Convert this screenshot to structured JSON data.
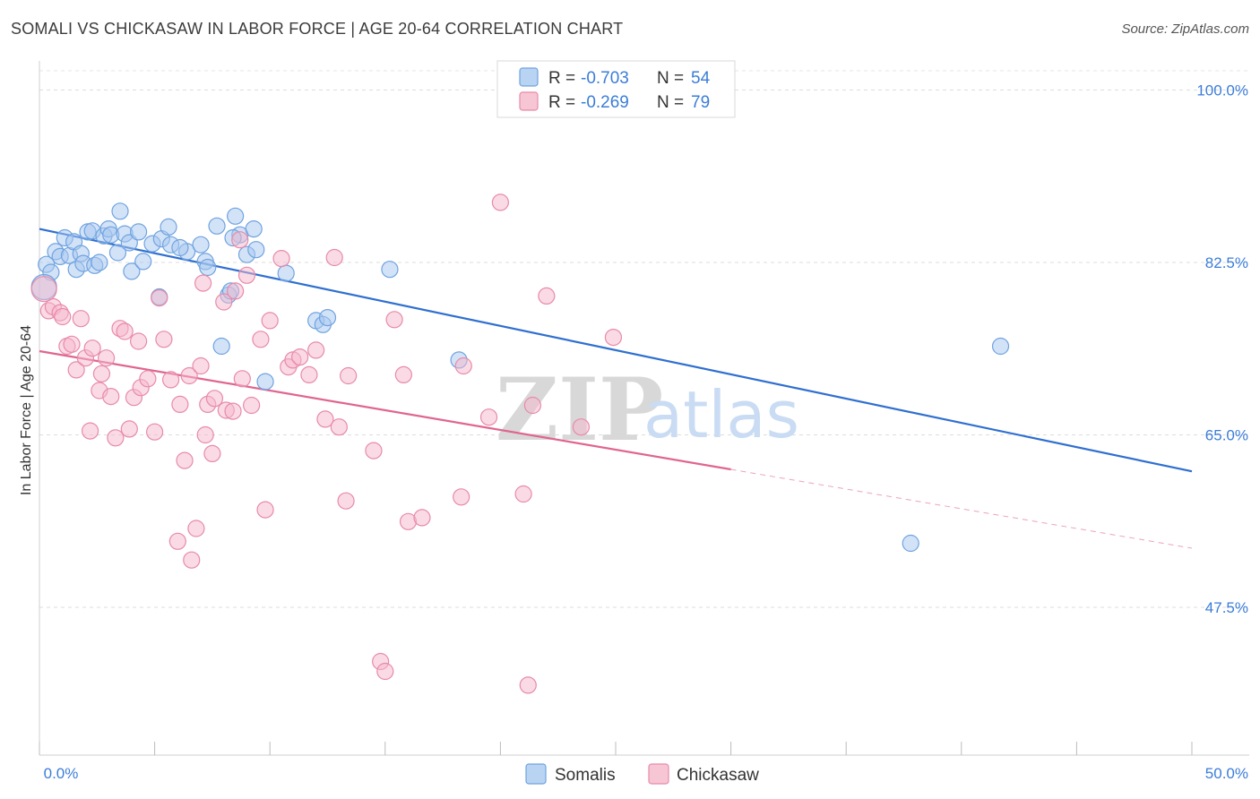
{
  "header": {
    "title": "SOMALI VS CHICKASAW IN LABOR FORCE | AGE 20-64 CORRELATION CHART",
    "source": "Source: ZipAtlas.com"
  },
  "watermark": {
    "zip": "ZIP",
    "atlas": "atlas"
  },
  "legend_box": {
    "rows": [
      {
        "r_label": "R =",
        "r_value": "-0.703",
        "n_label": "N =",
        "n_value": "54",
        "color": "#a8c8f0"
      },
      {
        "r_label": "R =",
        "r_value": "-0.269",
        "n_label": "N =",
        "n_value": "79",
        "color": "#f5b8cb"
      }
    ]
  },
  "bottom_legend": [
    {
      "label": "Somalis",
      "color": "#a8c8f0"
    },
    {
      "label": "Chickasaw",
      "color": "#f5b8cb"
    }
  ],
  "chart_data": {
    "type": "scatter",
    "xlabel": "",
    "ylabel": "In Labor Force | Age 20-64",
    "xlim": [
      0,
      50
    ],
    "ylim": [
      32.5,
      102.5
    ],
    "x_tick_labels": [
      "0.0%",
      "50.0%"
    ],
    "y_ticks": [
      47.5,
      65.0,
      82.5,
      100.0
    ],
    "y_tick_labels": [
      "47.5%",
      "65.0%",
      "82.5%",
      "100.0%"
    ],
    "grid": true,
    "legend_placement": "top-center",
    "series": [
      {
        "name": "Somalis",
        "color": "#6fa3e0",
        "fill": "#a8c8f0",
        "trend": {
          "x": [
            0,
            50
          ],
          "y": [
            85.9,
            61.3
          ],
          "color": "#2f6fd0"
        },
        "points": [
          [
            0.3,
            82.3
          ],
          [
            0.5,
            81.5
          ],
          [
            0.7,
            83.6
          ],
          [
            0.9,
            83.1
          ],
          [
            1.1,
            85.0
          ],
          [
            1.3,
            83.2
          ],
          [
            1.5,
            84.6
          ],
          [
            1.6,
            81.8
          ],
          [
            1.8,
            83.4
          ],
          [
            1.9,
            82.4
          ],
          [
            2.1,
            85.6
          ],
          [
            2.3,
            85.7
          ],
          [
            2.4,
            82.2
          ],
          [
            2.6,
            82.5
          ],
          [
            2.8,
            85.2
          ],
          [
            3.0,
            85.9
          ],
          [
            3.1,
            85.3
          ],
          [
            3.4,
            83.5
          ],
          [
            3.5,
            87.7
          ],
          [
            3.7,
            85.4
          ],
          [
            3.9,
            84.5
          ],
          [
            4.0,
            81.6
          ],
          [
            4.3,
            85.6
          ],
          [
            4.5,
            82.6
          ],
          [
            4.9,
            84.4
          ],
          [
            5.3,
            84.9
          ],
          [
            5.6,
            86.1
          ],
          [
            5.7,
            84.3
          ],
          [
            5.2,
            79.0
          ],
          [
            6.4,
            83.6
          ],
          [
            7.0,
            84.3
          ],
          [
            7.2,
            82.6
          ],
          [
            7.3,
            82.0
          ],
          [
            7.7,
            86.2
          ],
          [
            7.9,
            74.0
          ],
          [
            8.2,
            79.2
          ],
          [
            8.3,
            79.6
          ],
          [
            8.5,
            87.2
          ],
          [
            8.7,
            85.3
          ],
          [
            9.0,
            83.3
          ],
          [
            9.3,
            85.9
          ],
          [
            9.4,
            83.8
          ],
          [
            9.8,
            70.4
          ],
          [
            10.7,
            81.4
          ],
          [
            12.0,
            76.6
          ],
          [
            12.3,
            76.2
          ],
          [
            12.5,
            76.9
          ],
          [
            15.2,
            81.8
          ],
          [
            18.2,
            72.6
          ],
          [
            41.7,
            74.0
          ],
          [
            37.8,
            54.0
          ],
          [
            8.4,
            85.0
          ],
          [
            6.1,
            84.0
          ],
          [
            0.2,
            80.0
          ]
        ]
      },
      {
        "name": "Chickasaw",
        "color": "#e88aa8",
        "fill": "#f5b8cb",
        "trend": {
          "x": [
            0,
            30
          ],
          "y": [
            73.5,
            61.5
          ],
          "color": "#e06590"
        },
        "trend_dashed": {
          "x": [
            30,
            50
          ],
          "y": [
            61.5,
            53.5
          ]
        },
        "points": [
          [
            0.2,
            79.8
          ],
          [
            0.4,
            77.6
          ],
          [
            0.6,
            78.0
          ],
          [
            0.9,
            77.4
          ],
          [
            1.0,
            77.0
          ],
          [
            1.2,
            74.0
          ],
          [
            1.4,
            74.2
          ],
          [
            1.6,
            71.6
          ],
          [
            1.8,
            76.8
          ],
          [
            2.0,
            72.8
          ],
          [
            2.2,
            65.4
          ],
          [
            2.3,
            73.8
          ],
          [
            2.6,
            69.5
          ],
          [
            2.7,
            71.2
          ],
          [
            2.9,
            72.8
          ],
          [
            3.1,
            68.9
          ],
          [
            3.3,
            64.7
          ],
          [
            3.5,
            75.8
          ],
          [
            3.7,
            75.5
          ],
          [
            3.9,
            65.6
          ],
          [
            4.1,
            68.8
          ],
          [
            4.3,
            74.5
          ],
          [
            4.4,
            69.8
          ],
          [
            4.7,
            70.7
          ],
          [
            5.0,
            65.3
          ],
          [
            5.2,
            78.9
          ],
          [
            5.4,
            74.7
          ],
          [
            5.7,
            70.6
          ],
          [
            6.0,
            54.2
          ],
          [
            6.1,
            68.1
          ],
          [
            6.3,
            62.4
          ],
          [
            6.5,
            71.0
          ],
          [
            6.6,
            52.3
          ],
          [
            6.8,
            55.5
          ],
          [
            7.0,
            72.0
          ],
          [
            7.1,
            80.4
          ],
          [
            7.3,
            68.1
          ],
          [
            7.5,
            63.1
          ],
          [
            7.6,
            68.7
          ],
          [
            8.0,
            78.5
          ],
          [
            8.1,
            67.5
          ],
          [
            8.4,
            67.4
          ],
          [
            8.5,
            79.6
          ],
          [
            8.7,
            84.8
          ],
          [
            8.8,
            70.7
          ],
          [
            9.0,
            81.2
          ],
          [
            9.2,
            68.0
          ],
          [
            9.6,
            74.7
          ],
          [
            9.8,
            57.4
          ],
          [
            10.0,
            76.6
          ],
          [
            10.5,
            82.9
          ],
          [
            10.8,
            71.9
          ],
          [
            11.0,
            72.6
          ],
          [
            11.3,
            72.9
          ],
          [
            11.7,
            71.1
          ],
          [
            12.0,
            73.6
          ],
          [
            12.4,
            66.6
          ],
          [
            12.8,
            83.0
          ],
          [
            13.0,
            65.8
          ],
          [
            13.3,
            58.3
          ],
          [
            13.4,
            71.0
          ],
          [
            14.5,
            63.4
          ],
          [
            14.8,
            42.0
          ],
          [
            15.4,
            76.7
          ],
          [
            15.8,
            71.1
          ],
          [
            16.0,
            56.2
          ],
          [
            16.6,
            56.6
          ],
          [
            18.3,
            58.7
          ],
          [
            18.4,
            72.0
          ],
          [
            19.5,
            66.8
          ],
          [
            21.0,
            59.0
          ],
          [
            21.2,
            39.6
          ],
          [
            21.4,
            68.0
          ],
          [
            22.0,
            79.1
          ],
          [
            23.5,
            65.8
          ],
          [
            24.9,
            74.9
          ],
          [
            15.0,
            41.0
          ],
          [
            7.2,
            65.0
          ],
          [
            20.0,
            88.6
          ]
        ]
      }
    ]
  }
}
